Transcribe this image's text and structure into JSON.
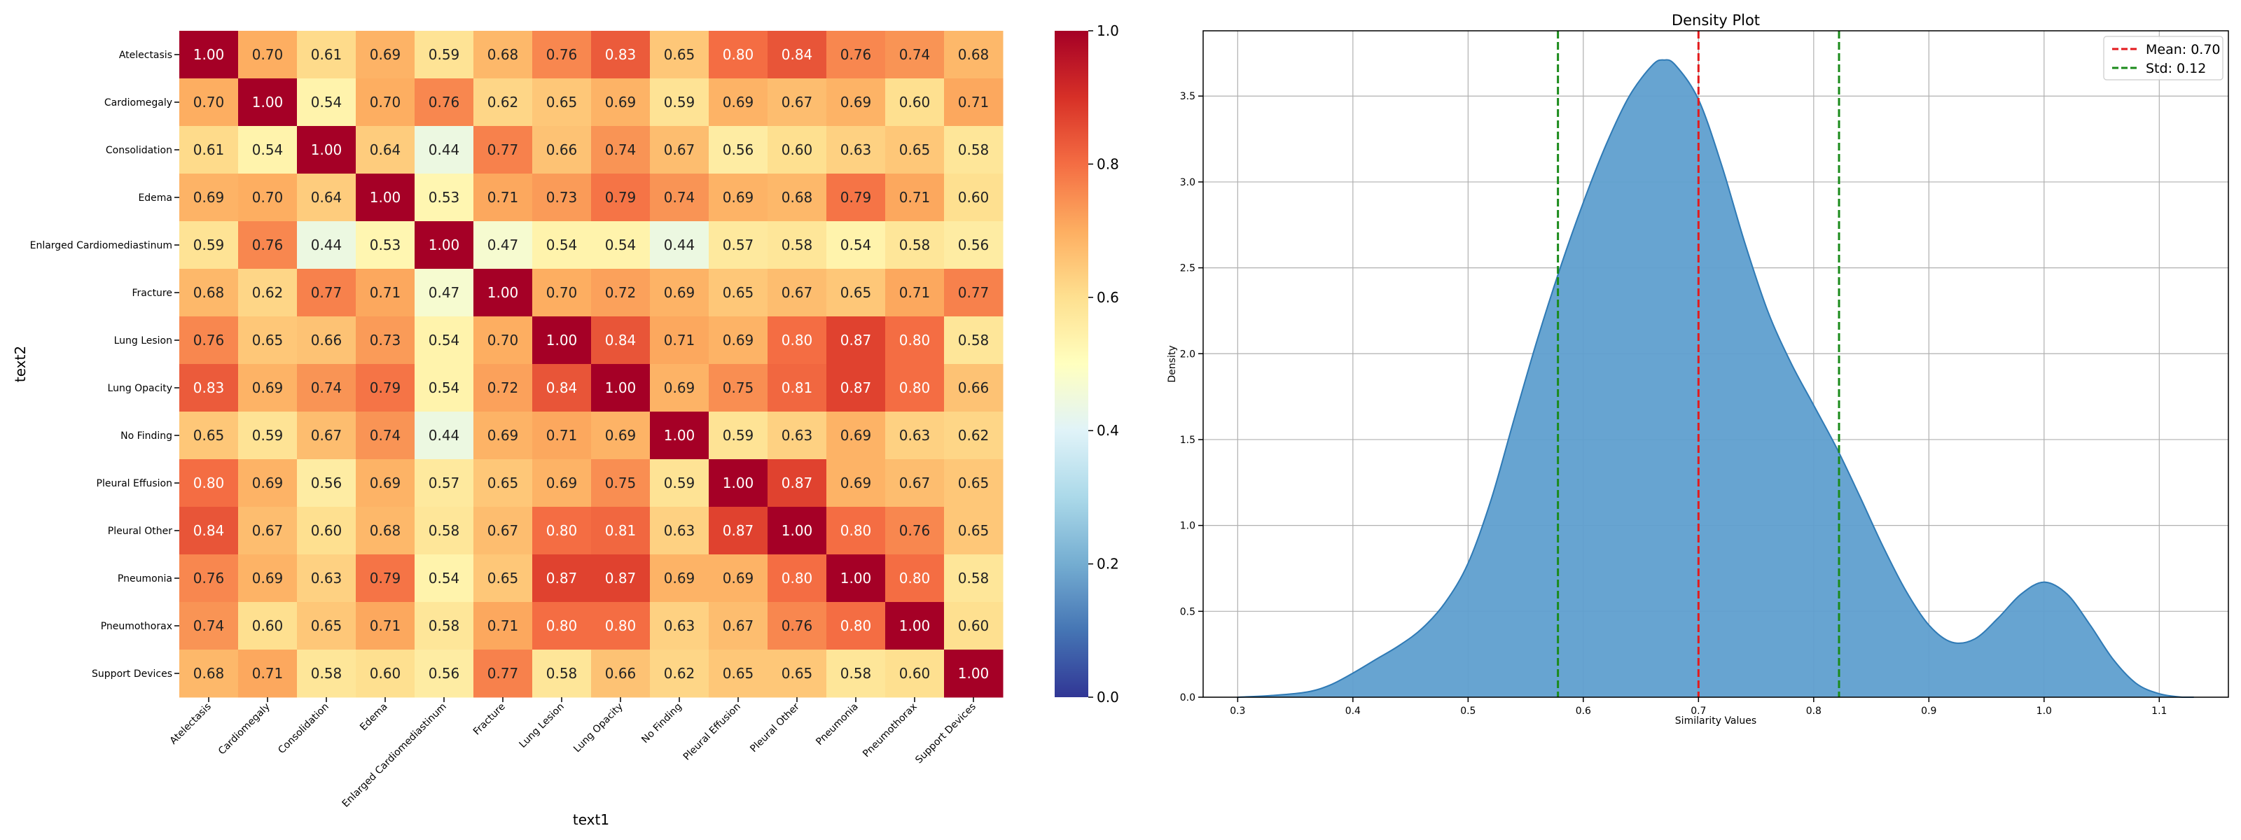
{
  "chart_data": [
    {
      "type": "heatmap",
      "xlabel": "text1",
      "ylabel": "text2",
      "x_categories": [
        "Atelectasis",
        "Cardiomegaly",
        "Consolidation",
        "Edema",
        "Enlarged Cardiomediastinum",
        "Fracture",
        "Lung Lesion",
        "Lung Opacity",
        "No Finding",
        "Pleural Effusion",
        "Pleural Other",
        "Pneumonia",
        "Pneumothorax",
        "Support Devices"
      ],
      "y_categories": [
        "Atelectasis",
        "Cardiomegaly",
        "Consolidation",
        "Edema",
        "Enlarged Cardiomediastinum",
        "Fracture",
        "Lung Lesion",
        "Lung Opacity",
        "No Finding",
        "Pleural Effusion",
        "Pleural Other",
        "Pneumonia",
        "Pneumothorax",
        "Support Devices"
      ],
      "values": [
        [
          1.0,
          0.7,
          0.61,
          0.69,
          0.59,
          0.68,
          0.76,
          0.83,
          0.65,
          0.8,
          0.84,
          0.76,
          0.74,
          0.68
        ],
        [
          0.7,
          1.0,
          0.54,
          0.7,
          0.76,
          0.62,
          0.65,
          0.69,
          0.59,
          0.69,
          0.67,
          0.69,
          0.6,
          0.71
        ],
        [
          0.61,
          0.54,
          1.0,
          0.64,
          0.44,
          0.77,
          0.66,
          0.74,
          0.67,
          0.56,
          0.6,
          0.63,
          0.65,
          0.58
        ],
        [
          0.69,
          0.7,
          0.64,
          1.0,
          0.53,
          0.71,
          0.73,
          0.79,
          0.74,
          0.69,
          0.68,
          0.79,
          0.71,
          0.6
        ],
        [
          0.59,
          0.76,
          0.44,
          0.53,
          1.0,
          0.47,
          0.54,
          0.54,
          0.44,
          0.57,
          0.58,
          0.54,
          0.58,
          0.56
        ],
        [
          0.68,
          0.62,
          0.77,
          0.71,
          0.47,
          1.0,
          0.7,
          0.72,
          0.69,
          0.65,
          0.67,
          0.65,
          0.71,
          0.77
        ],
        [
          0.76,
          0.65,
          0.66,
          0.73,
          0.54,
          0.7,
          1.0,
          0.84,
          0.71,
          0.69,
          0.8,
          0.87,
          0.8,
          0.58
        ],
        [
          0.83,
          0.69,
          0.74,
          0.79,
          0.54,
          0.72,
          0.84,
          1.0,
          0.69,
          0.75,
          0.81,
          0.87,
          0.8,
          0.66
        ],
        [
          0.65,
          0.59,
          0.67,
          0.74,
          0.44,
          0.69,
          0.71,
          0.69,
          1.0,
          0.59,
          0.63,
          0.69,
          0.63,
          0.62
        ],
        [
          0.8,
          0.69,
          0.56,
          0.69,
          0.57,
          0.65,
          0.69,
          0.75,
          0.59,
          1.0,
          0.87,
          0.69,
          0.67,
          0.65
        ],
        [
          0.84,
          0.67,
          0.6,
          0.68,
          0.58,
          0.67,
          0.8,
          0.81,
          0.63,
          0.87,
          1.0,
          0.8,
          0.76,
          0.65
        ],
        [
          0.76,
          0.69,
          0.63,
          0.79,
          0.54,
          0.65,
          0.87,
          0.87,
          0.69,
          0.69,
          0.8,
          1.0,
          0.8,
          0.58
        ],
        [
          0.74,
          0.6,
          0.65,
          0.71,
          0.58,
          0.71,
          0.8,
          0.8,
          0.63,
          0.67,
          0.76,
          0.8,
          1.0,
          0.6
        ],
        [
          0.68,
          0.71,
          0.58,
          0.6,
          0.56,
          0.77,
          0.58,
          0.66,
          0.62,
          0.65,
          0.65,
          0.58,
          0.6,
          1.0
        ]
      ],
      "value_format": "0.00",
      "colormap": "RdYlBu_r",
      "colorbar": {
        "min": 0.0,
        "max": 1.0,
        "ticks": [
          "0.0",
          "0.2",
          "0.4",
          "0.6",
          "0.8",
          "1.0"
        ]
      }
    },
    {
      "type": "area",
      "title": "Density Plot",
      "xlabel": "Similarity Values",
      "ylabel": "Density",
      "xlim": [
        0.27,
        1.16
      ],
      "ylim": [
        0,
        3.88
      ],
      "grid": true,
      "x_ticks": [
        "0.3",
        "0.4",
        "0.5",
        "0.6",
        "0.7",
        "0.8",
        "0.9",
        "1.0",
        "1.1"
      ],
      "y_ticks": [
        "0.0",
        "0.5",
        "1.0",
        "1.5",
        "2.0",
        "2.5",
        "3.0",
        "3.5"
      ],
      "fill_color": "#5f9fcf",
      "line_color": "#2f7ab5",
      "curve": {
        "x": [
          0.3,
          0.33,
          0.36,
          0.38,
          0.4,
          0.42,
          0.44,
          0.46,
          0.48,
          0.5,
          0.52,
          0.54,
          0.56,
          0.58,
          0.6,
          0.62,
          0.64,
          0.66,
          0.67,
          0.68,
          0.7,
          0.72,
          0.74,
          0.76,
          0.78,
          0.8,
          0.82,
          0.84,
          0.86,
          0.88,
          0.9,
          0.92,
          0.94,
          0.96,
          0.98,
          1.0,
          1.02,
          1.04,
          1.06,
          1.08,
          1.1,
          1.12,
          1.13
        ],
        "y": [
          0.0,
          0.01,
          0.03,
          0.07,
          0.14,
          0.22,
          0.3,
          0.4,
          0.55,
          0.78,
          1.15,
          1.62,
          2.08,
          2.5,
          2.88,
          3.22,
          3.5,
          3.68,
          3.71,
          3.68,
          3.48,
          3.1,
          2.65,
          2.25,
          1.95,
          1.7,
          1.45,
          1.17,
          0.88,
          0.62,
          0.42,
          0.32,
          0.34,
          0.46,
          0.6,
          0.67,
          0.6,
          0.42,
          0.22,
          0.08,
          0.02,
          0.0,
          0.0
        ]
      },
      "reference_lines": [
        {
          "x": 0.7,
          "color": "#e31a1c",
          "style": "dashed",
          "label": "Mean: 0.70"
        },
        {
          "x": 0.578,
          "color": "#1a8a1a",
          "style": "dashed",
          "label": "Std: 0.12"
        },
        {
          "x": 0.822,
          "color": "#1a8a1a",
          "style": "dashed"
        }
      ],
      "legend": {
        "position": "top-right",
        "entries": [
          "Mean: 0.70",
          "Std: 0.12"
        ]
      }
    }
  ]
}
